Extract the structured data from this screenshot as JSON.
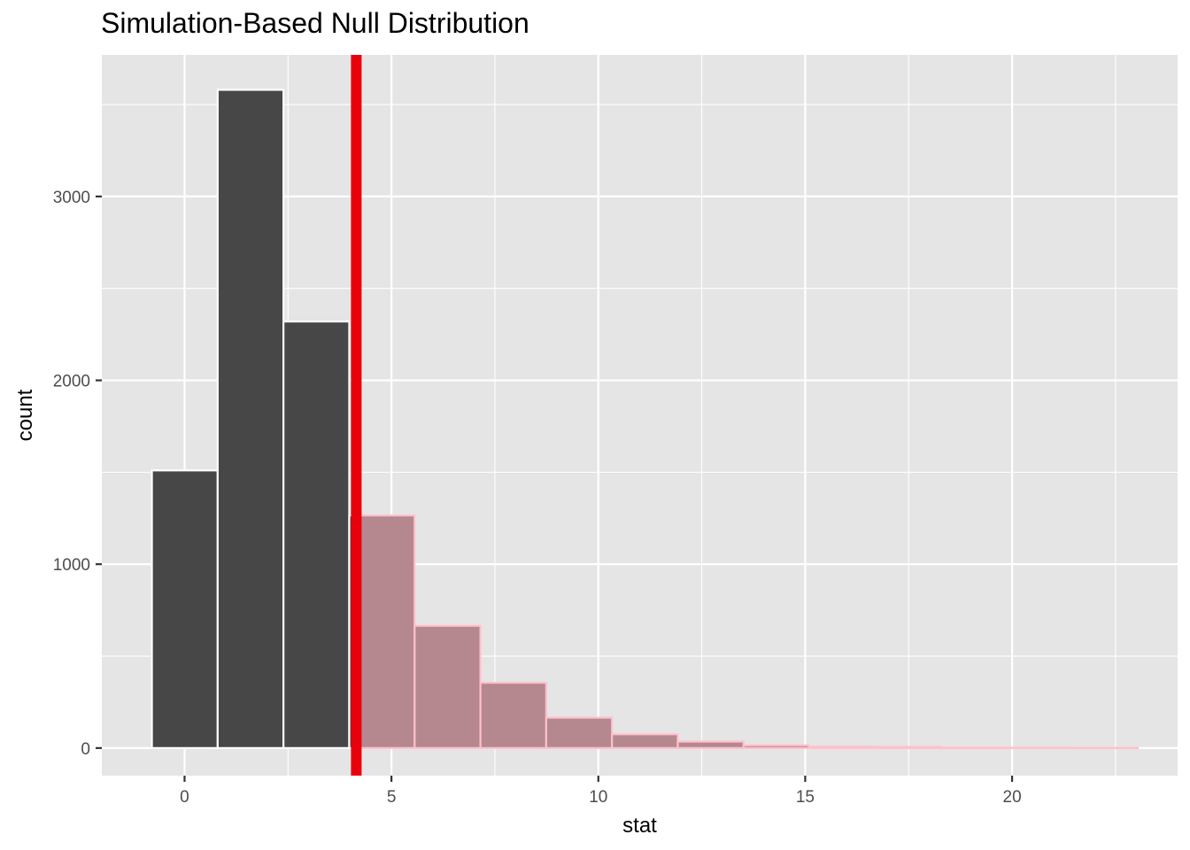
{
  "chart_data": {
    "type": "bar",
    "title": "Simulation-Based Null Distribution",
    "xlabel": "stat",
    "ylabel": "count",
    "xlim": [
      -2,
      24
    ],
    "ylim": [
      -150,
      3770
    ],
    "x_ticks": [
      0,
      5,
      10,
      15,
      20
    ],
    "x_tick_labels": [
      "0",
      "5",
      "10",
      "15",
      "20"
    ],
    "y_ticks": [
      0,
      1000,
      2000,
      3000
    ],
    "y_tick_labels": [
      "0",
      "1000",
      "2000",
      "3000"
    ],
    "bins": [
      {
        "xmin": -0.79,
        "xmax": 0.8,
        "count": 1510,
        "shaded": false
      },
      {
        "xmin": 0.8,
        "xmax": 2.39,
        "count": 3580,
        "shaded": false
      },
      {
        "xmin": 2.39,
        "xmax": 3.98,
        "count": 2320,
        "shaded": false
      },
      {
        "xmin": 3.98,
        "xmax": 5.56,
        "count": 1265,
        "shaded": true
      },
      {
        "xmin": 5.56,
        "xmax": 7.15,
        "count": 665,
        "shaded": true
      },
      {
        "xmin": 7.15,
        "xmax": 8.74,
        "count": 355,
        "shaded": true
      },
      {
        "xmin": 8.74,
        "xmax": 10.33,
        "count": 165,
        "shaded": true
      },
      {
        "xmin": 10.33,
        "xmax": 11.92,
        "count": 75,
        "shaded": true
      },
      {
        "xmin": 11.92,
        "xmax": 13.51,
        "count": 35,
        "shaded": true
      },
      {
        "xmin": 13.51,
        "xmax": 15.09,
        "count": 15,
        "shaded": true
      },
      {
        "xmin": 15.09,
        "xmax": 16.68,
        "count": 8,
        "shaded": true
      },
      {
        "xmin": 16.68,
        "xmax": 18.27,
        "count": 6,
        "shaded": true
      },
      {
        "xmin": 18.27,
        "xmax": 19.86,
        "count": 3,
        "shaded": true
      },
      {
        "xmin": 19.86,
        "xmax": 21.45,
        "count": 2,
        "shaded": true
      },
      {
        "xmin": 21.45,
        "xmax": 23.04,
        "count": 1,
        "shaded": true
      }
    ],
    "observed_stat": 4.15,
    "grid": true,
    "colors": {
      "panel_background": "#e5e5e5",
      "grid": "#ffffff",
      "bar_fill": "#474747",
      "bar_outline": "#ffffff",
      "shade_fill": "#b5888f",
      "shade_outline": "#ffc0cb",
      "observed_line": "#e8000b"
    }
  }
}
